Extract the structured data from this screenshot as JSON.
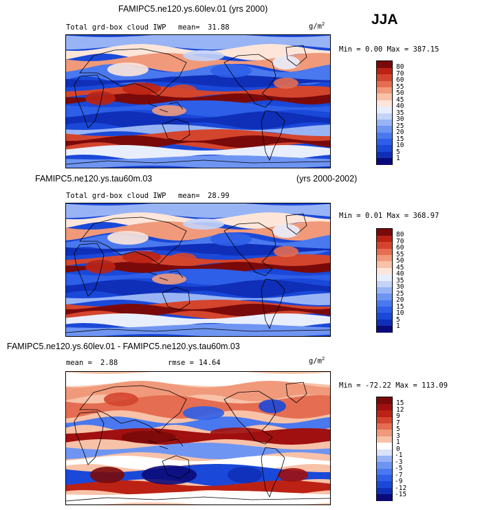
{
  "season": "JJA",
  "units_base": "g/m",
  "units_exp": "2",
  "panel1": {
    "title": "FAMIPC5.ne120.ys.60lev.01 (yrs 2000)",
    "subtitle": "Total grd-box cloud IWP",
    "mean_label": "mean=",
    "mean_value": "31.88",
    "min_label": "Min =",
    "min_value": "0.00",
    "max_label": "Max =",
    "max_value": "387.15"
  },
  "panel2": {
    "title": "FAMIPC5.ne120.ys.tau60m.03",
    "years": "(yrs 2000-2002)",
    "subtitle": "Total grd-box cloud IWP",
    "mean_label": "mean=",
    "mean_value": "28.99",
    "min_label": "Min =",
    "min_value": "0.01",
    "max_label": "Max =",
    "max_value": "368.97"
  },
  "panel3": {
    "title": "FAMIPC5.ne120.ys.60lev.01 - FAMIPC5.ne120.ys.tau60m.03",
    "mean_label": "mean =",
    "mean_value": "2.88",
    "rmse_label": "rmse =",
    "rmse_value": "14.64",
    "min_label": "Min =",
    "min_value": "-72.22",
    "max_label": "Max =",
    "max_value": "113.09"
  },
  "chart_data": [
    {
      "type": "heatmap",
      "title": "FAMIPC5.ne120.ys.60lev.01 (yrs 2000)",
      "variable": "Total grd-box cloud IWP",
      "units": "g/m2",
      "mean": 31.88,
      "min": 0.0,
      "max": 387.15,
      "colorbar_levels": [
        1,
        5,
        10,
        15,
        20,
        25,
        30,
        35,
        40,
        45,
        50,
        55,
        60,
        70,
        80
      ],
      "colorbar_colors": [
        "#0a0a7a",
        "#0f2fb8",
        "#1a48d8",
        "#2d5fe8",
        "#4a78ee",
        "#6f95f2",
        "#98b4f5",
        "#c4d3f8",
        "#e8eefc",
        "#fde6d9",
        "#f8c2a8",
        "#f09a7b",
        "#e56d51",
        "#d4452e",
        "#bb2214",
        "#7a0a0a"
      ]
    },
    {
      "type": "heatmap",
      "title": "FAMIPC5.ne120.ys.tau60m.03",
      "variable": "Total grd-box cloud IWP",
      "units": "g/m2",
      "mean": 28.99,
      "min": 0.01,
      "max": 368.97,
      "colorbar_levels": [
        1,
        5,
        10,
        15,
        20,
        25,
        30,
        35,
        40,
        45,
        50,
        55,
        60,
        70,
        80
      ],
      "colorbar_colors": [
        "#0a0a7a",
        "#0f2fb8",
        "#1a48d8",
        "#2d5fe8",
        "#4a78ee",
        "#6f95f2",
        "#98b4f5",
        "#c4d3f8",
        "#e8eefc",
        "#fde6d9",
        "#f8c2a8",
        "#f09a7b",
        "#e56d51",
        "#d4452e",
        "#bb2214",
        "#7a0a0a"
      ]
    },
    {
      "type": "heatmap",
      "title": "FAMIPC5.ne120.ys.60lev.01 - FAMIPC5.ne120.ys.tau60m.03",
      "variable": "difference",
      "units": "g/m2",
      "mean": 2.88,
      "rmse": 14.64,
      "min": -72.22,
      "max": 113.09,
      "colorbar_levels": [
        -15,
        -12,
        -9,
        -7,
        -5,
        -3,
        -1,
        0,
        1,
        3,
        5,
        7,
        9,
        12,
        15
      ],
      "colorbar_colors": [
        "#0a0a7a",
        "#0f2fb8",
        "#1a48d8",
        "#2d5fe8",
        "#4a78ee",
        "#6f95f2",
        "#98b4f5",
        "#d8e3fa",
        "#ffffff",
        "#f8c2a8",
        "#f09a7b",
        "#e56d51",
        "#d4452e",
        "#bb2214",
        "#a01010",
        "#7a0a0a"
      ]
    }
  ]
}
